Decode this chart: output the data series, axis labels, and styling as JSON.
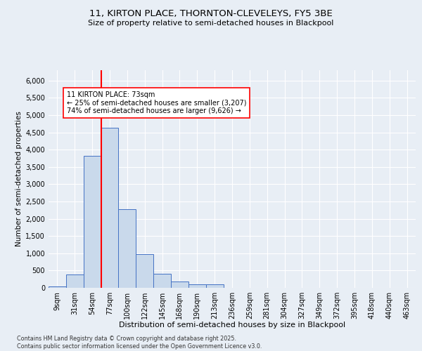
{
  "title_line1": "11, KIRTON PLACE, THORNTON-CLEVELEYS, FY5 3BE",
  "title_line2": "Size of property relative to semi-detached houses in Blackpool",
  "xlabel": "Distribution of semi-detached houses by size in Blackpool",
  "ylabel": "Number of semi-detached properties",
  "categories": [
    "9sqm",
    "31sqm",
    "54sqm",
    "77sqm",
    "100sqm",
    "122sqm",
    "145sqm",
    "168sqm",
    "190sqm",
    "213sqm",
    "236sqm",
    "259sqm",
    "281sqm",
    "304sqm",
    "327sqm",
    "349sqm",
    "372sqm",
    "395sqm",
    "418sqm",
    "440sqm",
    "463sqm"
  ],
  "values": [
    50,
    390,
    3820,
    4630,
    2280,
    980,
    400,
    185,
    110,
    100,
    0,
    0,
    0,
    0,
    0,
    0,
    0,
    0,
    0,
    0,
    0
  ],
  "bar_color": "#c9d9eb",
  "bar_edge_color": "#4472c4",
  "vline_color": "red",
  "property_label": "11 KIRTON PLACE: 73sqm",
  "annotation_smaller": "← 25% of semi-detached houses are smaller (3,207)",
  "annotation_larger": "74% of semi-detached houses are larger (9,626) →",
  "vline_pos": 2.5,
  "ylim": [
    0,
    6300
  ],
  "yticks": [
    0,
    500,
    1000,
    1500,
    2000,
    2500,
    3000,
    3500,
    4000,
    4500,
    5000,
    5500,
    6000
  ],
  "background_color": "#e8eef5",
  "grid_color": "#ffffff",
  "footer": "Contains HM Land Registry data © Crown copyright and database right 2025.\nContains public sector information licensed under the Open Government Licence v3.0."
}
